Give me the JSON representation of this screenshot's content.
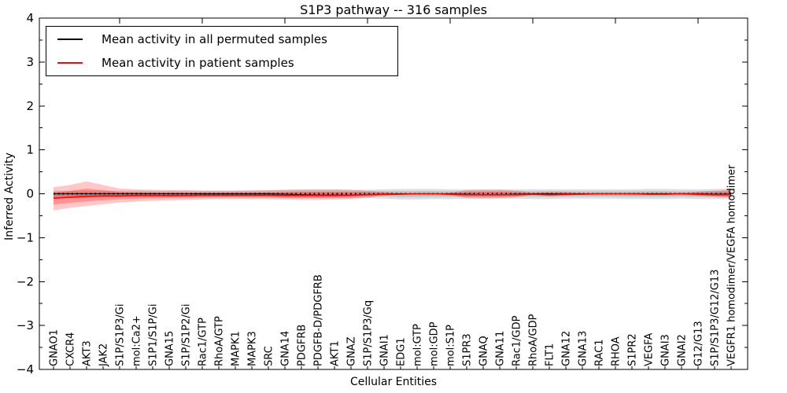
{
  "title": "S1P3 pathway -- 316 samples",
  "axes": {
    "xlabel": "Cellular Entities",
    "ylabel": "Inferred Activity",
    "ylim": [
      -4,
      4
    ],
    "ytick_values": [
      4,
      3,
      2,
      1,
      0,
      -1,
      -2,
      -3,
      -4
    ],
    "ytick_labels": [
      "4",
      "3",
      "2",
      "1",
      "0",
      "−1",
      "−2",
      "−3",
      "−4"
    ]
  },
  "legend": {
    "position": "upper left",
    "items": [
      {
        "label": "Mean activity in all permuted samples",
        "color": "#000000"
      },
      {
        "label": "Mean activity in patient samples",
        "color": "#ff0000"
      }
    ]
  },
  "chart_data": {
    "type": "line",
    "title": "S1P3 pathway -- 316 samples",
    "n_samples": 316,
    "xlabel": "Cellular Entities",
    "ylabel": "Inferred Activity",
    "ylim": [
      -4,
      4
    ],
    "grid": false,
    "zero_reference_line": {
      "style": "dotted",
      "color": "#000000",
      "y": 0
    },
    "x_major_tick_indices": [
      4,
      9,
      14,
      19,
      24,
      29,
      34,
      39
    ],
    "categories": [
      "GNAO1",
      "CXCR4",
      "AKT3",
      "JAK2",
      "S1P/S1P3/Gi",
      "mol:Ca2+",
      "S1P1/S1P/Gi",
      "GNA15",
      "S1P/S1P2/Gi",
      "Rac1/GTP",
      "RhoA/GTP",
      "MAPK1",
      "MAPK3",
      "SRC",
      "GNA14",
      "PDGFRB",
      "PDGFB-D/PDGFRB",
      "AKT1",
      "GNAZ",
      "S1P/S1P3/Gq",
      "GNAI1",
      "EDG1",
      "mol:GTP",
      "mol:GDP",
      "mol:S1P",
      "S1PR3",
      "GNAQ",
      "GNA11",
      "Rac1/GDP",
      "RhoA/GDP",
      "FLT1",
      "GNA12",
      "GNA13",
      "RAC1",
      "RHOA",
      "S1PR2",
      "VEGFA",
      "GNAI3",
      "GNAI2",
      "G12/G13",
      "S1P/S1P3/G12/G13",
      "VEGFR1 homodimer/VEGFA homodimer"
    ],
    "series": [
      {
        "name": "Mean activity in all permuted samples",
        "color": "#000000",
        "values": [
          0,
          0,
          0,
          0,
          0,
          0,
          0,
          0,
          0,
          0,
          0,
          0,
          0,
          0,
          -0.01,
          -0.02,
          -0.03,
          -0.03,
          -0.03,
          -0.02,
          -0.01,
          0,
          0,
          0,
          0,
          -0.01,
          -0.02,
          -0.02,
          -0.01,
          0,
          0,
          0,
          0,
          0,
          0,
          0,
          0,
          0,
          0,
          0,
          -0.01,
          -0.01
        ],
        "band_upper": [
          0.07,
          0.07,
          0.07,
          0.07,
          0.07,
          0.07,
          0.07,
          0.07,
          0.07,
          0.07,
          0.07,
          0.07,
          0.08,
          0.08,
          0.09,
          0.09,
          0.09,
          0.09,
          0.09,
          0.09,
          0.1,
          0.11,
          0.11,
          0.11,
          0.1,
          0.1,
          0.1,
          0.1,
          0.1,
          0.1,
          0.1,
          0.1,
          0.1,
          0.1,
          0.1,
          0.1,
          0.11,
          0.11,
          0.1,
          0.1,
          0.11,
          0.12
        ],
        "band_lower": [
          -0.09,
          -0.09,
          -0.09,
          -0.09,
          -0.08,
          -0.08,
          -0.08,
          -0.08,
          -0.08,
          -0.08,
          -0.08,
          -0.08,
          -0.09,
          -0.09,
          -0.1,
          -0.1,
          -0.1,
          -0.1,
          -0.1,
          -0.1,
          -0.11,
          -0.13,
          -0.13,
          -0.12,
          -0.12,
          -0.11,
          -0.11,
          -0.11,
          -0.11,
          -0.12,
          -0.12,
          -0.11,
          -0.11,
          -0.11,
          -0.11,
          -0.12,
          -0.12,
          -0.12,
          -0.11,
          -0.12,
          -0.12,
          -0.13
        ]
      },
      {
        "name": "Mean activity in patient samples",
        "color": "#ff0000",
        "values": [
          -0.1,
          -0.08,
          -0.06,
          -0.05,
          -0.05,
          -0.04,
          -0.04,
          -0.04,
          -0.04,
          -0.03,
          -0.03,
          -0.03,
          -0.03,
          -0.03,
          -0.04,
          -0.04,
          -0.04,
          -0.04,
          -0.03,
          -0.02,
          -0.01,
          -0.01,
          0,
          0,
          -0.01,
          -0.02,
          -0.02,
          -0.02,
          -0.02,
          -0.01,
          -0.02,
          -0.01,
          -0.01,
          0,
          0,
          0,
          -0.01,
          -0.01,
          0,
          -0.01,
          -0.02,
          -0.02
        ],
        "band_upper": [
          0.15,
          0.2,
          0.28,
          0.2,
          0.12,
          0.1,
          0.09,
          0.08,
          0.08,
          0.07,
          0.07,
          0.07,
          0.07,
          0.08,
          0.09,
          0.1,
          0.1,
          0.1,
          0.09,
          0.07,
          0.04,
          0.02,
          0.01,
          0.01,
          0.03,
          0.08,
          0.09,
          0.09,
          0.07,
          0.03,
          0.05,
          0.04,
          0.02,
          0.01,
          0.01,
          0.02,
          0.03,
          0.03,
          0.02,
          0.05,
          0.07,
          0.09
        ],
        "band_lower": [
          -0.38,
          -0.32,
          -0.28,
          -0.24,
          -0.2,
          -0.18,
          -0.16,
          -0.15,
          -0.14,
          -0.13,
          -0.12,
          -0.12,
          -0.12,
          -0.12,
          -0.13,
          -0.14,
          -0.14,
          -0.13,
          -0.12,
          -0.09,
          -0.05,
          -0.02,
          -0.01,
          -0.01,
          -0.04,
          -0.1,
          -0.11,
          -0.1,
          -0.08,
          -0.03,
          -0.06,
          -0.05,
          -0.02,
          -0.01,
          -0.01,
          -0.02,
          -0.03,
          -0.03,
          -0.02,
          -0.05,
          -0.07,
          -0.09
        ]
      }
    ]
  }
}
